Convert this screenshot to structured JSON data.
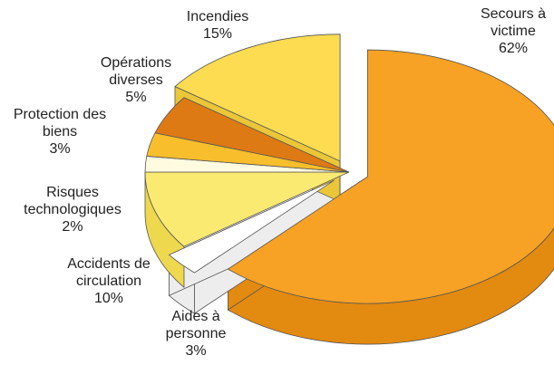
{
  "chart_data": {
    "type": "pie",
    "title": "",
    "value_suffix": "%",
    "slices": [
      {
        "name_lines": [
          "Secours à",
          "victime"
        ],
        "value": 62,
        "color": "#F7A224",
        "side": "#E38A10",
        "exploded": true
      },
      {
        "name_lines": [
          "Aides à",
          "personne"
        ],
        "value": 3,
        "color": "#FFFFFF",
        "side": "#EDEDED",
        "exploded": true
      },
      {
        "name_lines": [
          "Accidents de",
          "circulation"
        ],
        "value": 10,
        "color": "#FBEA72",
        "side": "#EDD84E",
        "exploded": false
      },
      {
        "name_lines": [
          "Risques",
          "technologiques"
        ],
        "value": 2,
        "color": "#FFFBE0",
        "side": "#F0EAC0",
        "exploded": false
      },
      {
        "name_lines": [
          "Protection des",
          "biens"
        ],
        "value": 3,
        "color": "#F9BE2C",
        "side": "#E3A414",
        "exploded": false
      },
      {
        "name_lines": [
          "Opérations",
          "diverses"
        ],
        "value": 5,
        "color": "#DD7A14",
        "side": "#BC620A",
        "exploded": false
      },
      {
        "name_lines": [
          "Incendies"
        ],
        "value": 15,
        "color": "#FDDC52",
        "side": "#EAC638",
        "exploded": true
      }
    ]
  }
}
